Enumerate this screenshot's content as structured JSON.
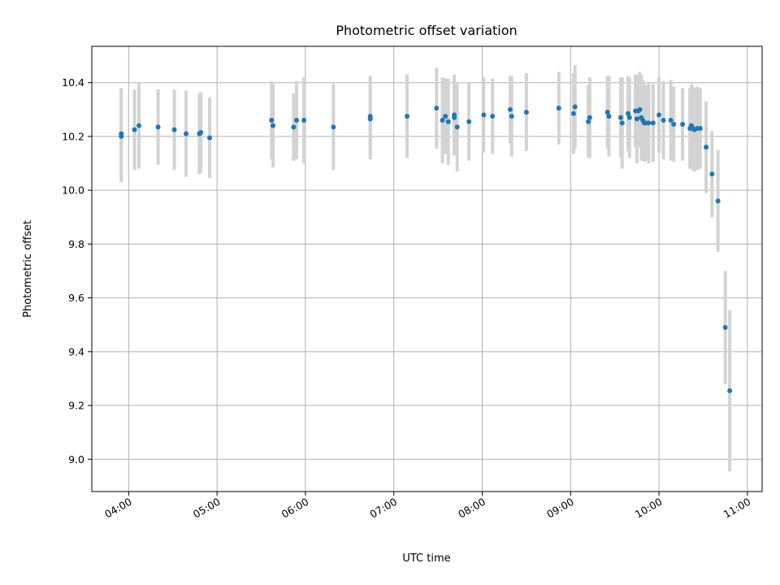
{
  "chart_data": {
    "type": "scatter",
    "title": "Photometric offset variation",
    "xlabel": "UTC time",
    "ylabel": "Photometric offset",
    "xlim": [
      "03:35",
      "11:10"
    ],
    "ylim": [
      8.88,
      10.535
    ],
    "x_ticks": [
      "04:00",
      "05:00",
      "06:00",
      "07:00",
      "08:00",
      "09:00",
      "10:00",
      "11:00"
    ],
    "y_ticks": [
      9.0,
      9.2,
      9.4,
      9.6,
      9.8,
      10.0,
      10.2,
      10.4
    ],
    "grid": true,
    "colors": {
      "points": "#1f77b4",
      "errorbars": "#d3d3d3",
      "grid": "#b0b0b0"
    },
    "series": [
      {
        "x": [
          "03:55",
          "03:55",
          "04:04",
          "04:07",
          "04:20",
          "04:31",
          "04:39",
          "04:48",
          "04:49",
          "04:55",
          "05:37",
          "05:38",
          "05:52",
          "05:54",
          "05:59",
          "06:19",
          "06:44",
          "06:44",
          "07:09",
          "07:29",
          "07:33",
          "07:35",
          "07:37",
          "07:41",
          "07:41",
          "07:43",
          "07:51",
          "08:01",
          "08:07",
          "08:19",
          "08:20",
          "08:30",
          "08:52",
          "09:02",
          "09:03",
          "09:12",
          "09:13",
          "09:25",
          "09:26",
          "09:34",
          "09:35",
          "09:39",
          "09:40",
          "09:44",
          "09:45",
          "09:46",
          "09:47",
          "09:48",
          "09:49",
          "09:50",
          "09:51",
          "09:53",
          "09:56",
          "10:00",
          "10:03",
          "10:08",
          "10:10",
          "10:16",
          "10:21",
          "10:22",
          "10:23",
          "10:24",
          "10:26",
          "10:28",
          "10:32",
          "10:36",
          "10:40",
          "10:45",
          "10:48"
        ],
        "y": [
          10.21,
          10.2,
          10.225,
          10.24,
          10.235,
          10.225,
          10.21,
          10.21,
          10.215,
          10.195,
          10.26,
          10.24,
          10.235,
          10.26,
          10.26,
          10.235,
          10.275,
          10.265,
          10.275,
          10.305,
          10.26,
          10.275,
          10.255,
          10.27,
          10.28,
          10.235,
          10.255,
          10.28,
          10.275,
          10.3,
          10.275,
          10.29,
          10.305,
          10.285,
          10.31,
          10.255,
          10.27,
          10.29,
          10.275,
          10.27,
          10.25,
          10.285,
          10.27,
          10.295,
          10.265,
          10.295,
          10.3,
          10.27,
          10.26,
          10.25,
          10.25,
          10.25,
          10.25,
          10.28,
          10.26,
          10.26,
          10.245,
          10.245,
          10.23,
          10.24,
          10.23,
          10.225,
          10.23,
          10.23,
          10.16,
          10.06,
          9.96,
          9.49,
          9.255
        ],
        "error": [
          0.17,
          0.17,
          0.15,
          0.16,
          0.14,
          0.15,
          0.16,
          0.15,
          0.15,
          0.15,
          0.145,
          0.155,
          0.125,
          0.145,
          0.16,
          0.16,
          0.15,
          0.15,
          0.155,
          0.15,
          0.16,
          0.14,
          0.16,
          0.14,
          0.15,
          0.165,
          0.145,
          0.14,
          0.14,
          0.125,
          0.15,
          0.145,
          0.135,
          0.15,
          0.155,
          0.135,
          0.15,
          0.135,
          0.15,
          0.15,
          0.17,
          0.14,
          0.15,
          0.135,
          0.165,
          0.135,
          0.14,
          0.16,
          0.15,
          0.145,
          0.14,
          0.15,
          0.145,
          0.14,
          0.145,
          0.15,
          0.14,
          0.135,
          0.15,
          0.155,
          0.155,
          0.155,
          0.155,
          0.15,
          0.17,
          0.16,
          0.19,
          0.21,
          0.3
        ]
      }
    ]
  }
}
